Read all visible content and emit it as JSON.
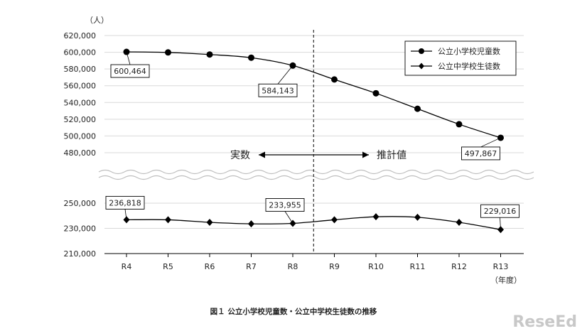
{
  "chart_data": {
    "type": "line",
    "title": "図１ 公立小学校児童数・公立中学校生徒数の推移",
    "ylabel": "（人）",
    "xlabel": "（年度）",
    "categories": [
      "R4",
      "R5",
      "R6",
      "R7",
      "R8",
      "R9",
      "R10",
      "R11",
      "R12",
      "R13"
    ],
    "series": [
      {
        "name": "公立小学校児童数",
        "marker": "circle",
        "values": [
          600464,
          599800,
          597300,
          593500,
          584143,
          567500,
          551000,
          532500,
          514000,
          497867
        ]
      },
      {
        "name": "公立中学校生徒数",
        "marker": "diamond",
        "values": [
          236818,
          236800,
          234800,
          233600,
          233955,
          236800,
          239200,
          238800,
          234800,
          229016
        ]
      }
    ],
    "upper_axis": {
      "ylim": [
        480000,
        620000
      ],
      "ticks": [
        "620,000",
        "600,000",
        "580,000",
        "560,000",
        "540,000",
        "520,000",
        "500,000",
        "480,000"
      ]
    },
    "lower_axis": {
      "ylim": [
        210000,
        250000
      ],
      "ticks": [
        "250,000",
        "230,000",
        "210,000"
      ]
    },
    "data_labels": [
      {
        "series": 0,
        "index": 0,
        "text": "600,464"
      },
      {
        "series": 0,
        "index": 4,
        "text": "584,143"
      },
      {
        "series": 0,
        "index": 9,
        "text": "497,867"
      },
      {
        "series": 1,
        "index": 0,
        "text": "236,818"
      },
      {
        "series": 1,
        "index": 4,
        "text": "233,955"
      },
      {
        "series": 1,
        "index": 9,
        "text": "229,016"
      }
    ],
    "annotations": {
      "actual": "実数",
      "estimate": "推計値"
    },
    "grid": true,
    "legend": "top-right",
    "colors": {
      "line": "#000000",
      "grid": "#d9d9d9"
    }
  },
  "watermark": "ReseEd"
}
